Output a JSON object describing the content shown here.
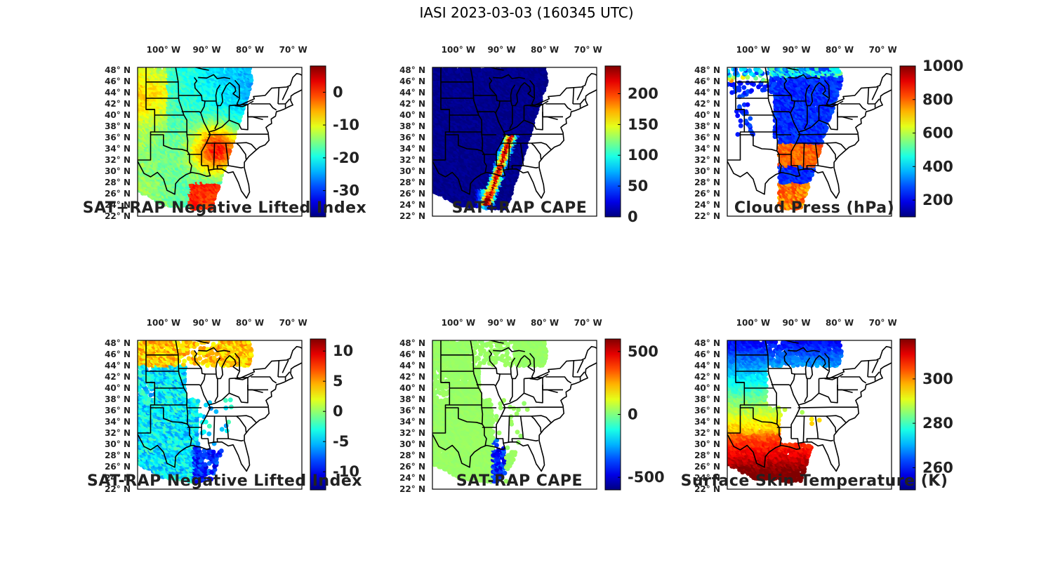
{
  "figure": {
    "title": "IASI 2023-03-03 (160345 UTC)"
  },
  "chart_data": [
    {
      "type": "heatmap",
      "panel": "p1",
      "title": "SAT+RAP Negative Lifted Index",
      "lon_ticks": [
        "100° W",
        "90° W",
        "80° W",
        "70° W"
      ],
      "lat_ticks": [
        "48° N",
        "46° N",
        "44° N",
        "42° N",
        "40° N",
        "38° N",
        "36° N",
        "34° N",
        "32° N",
        "30° N",
        "28° N",
        "26° N",
        "24° N",
        "22° N"
      ],
      "colorbar": {
        "min": -38,
        "max": 8,
        "ticks": [
          0,
          -10,
          -20,
          -30
        ],
        "tick_labels": [
          "0",
          "-10",
          "-20",
          "-30"
        ]
      },
      "pattern": "nli_total"
    },
    {
      "type": "heatmap",
      "panel": "p2",
      "title": "SAT+RAP CAPE",
      "lon_ticks": [
        "100° W",
        "90° W",
        "80° W",
        "70° W"
      ],
      "lat_ticks": [
        "48° N",
        "46° N",
        "44° N",
        "42° N",
        "40° N",
        "38° N",
        "36° N",
        "34° N",
        "32° N",
        "30° N",
        "28° N",
        "26° N",
        "24° N",
        "22° N"
      ],
      "colorbar": {
        "min": 0,
        "max": 245,
        "ticks": [
          200,
          150,
          100,
          50,
          0
        ],
        "tick_labels": [
          "200",
          "150",
          "100",
          "50",
          "0"
        ]
      },
      "pattern": "cape_total"
    },
    {
      "type": "heatmap",
      "panel": "p3",
      "title": "Cloud Press (hPa)",
      "lon_ticks": [
        "100° W",
        "90° W",
        "80° W",
        "70° W"
      ],
      "lat_ticks": [
        "48° N",
        "46° N",
        "44° N",
        "42° N",
        "40° N",
        "38° N",
        "36° N",
        "34° N",
        "32° N",
        "30° N",
        "28° N",
        "26° N",
        "24° N",
        "22° N"
      ],
      "colorbar": {
        "min": 100,
        "max": 1000,
        "ticks": [
          1000,
          800,
          600,
          400,
          200
        ],
        "tick_labels": [
          "1000",
          "800",
          "600",
          "400",
          "200"
        ]
      },
      "pattern": "cloud_press"
    },
    {
      "type": "heatmap",
      "panel": "p4",
      "title": "SAT-RAP Negative Lifted Index",
      "lon_ticks": [
        "100° W",
        "90° W",
        "80° W",
        "70° W"
      ],
      "lat_ticks": [
        "48° N",
        "46° N",
        "44° N",
        "42° N",
        "40° N",
        "38° N",
        "36° N",
        "34° N",
        "32° N",
        "30° N",
        "28° N",
        "26° N",
        "24° N",
        "22° N"
      ],
      "colorbar": {
        "min": -13,
        "max": 12,
        "ticks": [
          10,
          5,
          0,
          -5,
          -10
        ],
        "tick_labels": [
          "10",
          "5",
          "0",
          "-5",
          "-10"
        ]
      },
      "pattern": "nli_diff"
    },
    {
      "type": "heatmap",
      "panel": "p5",
      "title": "SAT-RAP CAPE",
      "lon_ticks": [
        "100° W",
        "90° W",
        "80° W",
        "70° W"
      ],
      "lat_ticks": [
        "48° N",
        "46° N",
        "44° N",
        "42° N",
        "40° N",
        "38° N",
        "36° N",
        "34° N",
        "32° N",
        "30° N",
        "28° N",
        "26° N",
        "24° N",
        "22° N"
      ],
      "colorbar": {
        "min": -600,
        "max": 600,
        "ticks": [
          500,
          0,
          -500
        ],
        "tick_labels": [
          "500",
          "0",
          "-500"
        ]
      },
      "pattern": "cape_diff"
    },
    {
      "type": "heatmap",
      "panel": "p6",
      "title": "Surface Skin Temperature (K)",
      "lon_ticks": [
        "100° W",
        "90° W",
        "80° W",
        "70° W"
      ],
      "lat_ticks": [
        "48° N",
        "46° N",
        "44° N",
        "42° N",
        "40° N",
        "38° N",
        "36° N",
        "34° N",
        "32° N",
        "30° N",
        "28° N",
        "26° N",
        "24° N",
        "22° N"
      ],
      "colorbar": {
        "min": 250,
        "max": 318,
        "ticks": [
          300,
          280,
          260
        ],
        "tick_labels": [
          "300",
          "280",
          "260"
        ]
      },
      "pattern": "skin_temp"
    }
  ]
}
